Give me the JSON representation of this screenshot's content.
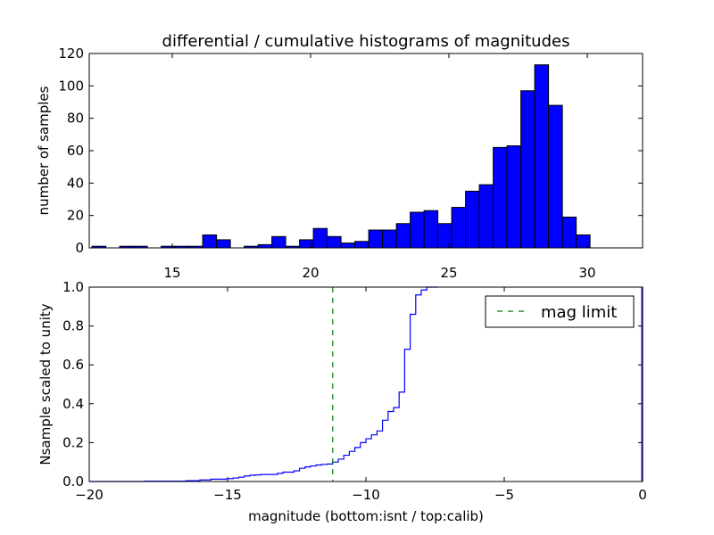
{
  "chart_data": [
    {
      "type": "bar",
      "title": "differential / cumulative histograms of magnitudes",
      "xlabel": "",
      "ylabel": "number of samples",
      "xlim": [
        12.0,
        32.0
      ],
      "ylim": [
        0,
        120
      ],
      "xticks": [
        15,
        20,
        25,
        30
      ],
      "yticks": [
        0,
        20,
        40,
        60,
        80,
        100,
        120
      ],
      "xtick_position": "top",
      "grid": false,
      "bar_color": "#0000ff",
      "bar_edge_color": "#000000",
      "bins": [
        {
          "x0": 12.1,
          "x1": 12.6,
          "count": 1
        },
        {
          "x0": 13.1,
          "x1": 13.6,
          "count": 1
        },
        {
          "x0": 13.6,
          "x1": 14.1,
          "count": 1
        },
        {
          "x0": 14.6,
          "x1": 15.1,
          "count": 1
        },
        {
          "x0": 15.1,
          "x1": 15.6,
          "count": 1
        },
        {
          "x0": 15.6,
          "x1": 16.1,
          "count": 1
        },
        {
          "x0": 16.1,
          "x1": 16.6,
          "count": 8
        },
        {
          "x0": 16.6,
          "x1": 17.1,
          "count": 5
        },
        {
          "x0": 17.6,
          "x1": 18.1,
          "count": 1
        },
        {
          "x0": 18.1,
          "x1": 18.6,
          "count": 2
        },
        {
          "x0": 18.6,
          "x1": 19.1,
          "count": 7
        },
        {
          "x0": 19.1,
          "x1": 19.6,
          "count": 1
        },
        {
          "x0": 19.6,
          "x1": 20.1,
          "count": 5
        },
        {
          "x0": 20.1,
          "x1": 20.6,
          "count": 12
        },
        {
          "x0": 20.6,
          "x1": 21.1,
          "count": 7
        },
        {
          "x0": 21.1,
          "x1": 21.6,
          "count": 3
        },
        {
          "x0": 21.6,
          "x1": 22.1,
          "count": 4
        },
        {
          "x0": 22.1,
          "x1": 22.6,
          "count": 11
        },
        {
          "x0": 22.6,
          "x1": 23.1,
          "count": 11
        },
        {
          "x0": 23.1,
          "x1": 23.6,
          "count": 15
        },
        {
          "x0": 23.6,
          "x1": 24.1,
          "count": 22
        },
        {
          "x0": 24.1,
          "x1": 24.6,
          "count": 23
        },
        {
          "x0": 24.6,
          "x1": 25.1,
          "count": 15
        },
        {
          "x0": 25.1,
          "x1": 25.6,
          "count": 25
        },
        {
          "x0": 25.6,
          "x1": 26.1,
          "count": 35
        },
        {
          "x0": 26.1,
          "x1": 26.6,
          "count": 39
        },
        {
          "x0": 26.6,
          "x1": 27.1,
          "count": 62
        },
        {
          "x0": 27.1,
          "x1": 27.6,
          "count": 63
        },
        {
          "x0": 27.6,
          "x1": 28.1,
          "count": 97
        },
        {
          "x0": 28.1,
          "x1": 28.6,
          "count": 113
        },
        {
          "x0": 28.6,
          "x1": 29.1,
          "count": 88
        },
        {
          "x0": 29.1,
          "x1": 29.6,
          "count": 19
        },
        {
          "x0": 29.6,
          "x1": 30.1,
          "count": 8
        }
      ]
    },
    {
      "type": "line",
      "xlabel": "magnitude (bottom:isnt / top:calib)",
      "ylabel": "Nsample scaled to unity",
      "xlim": [
        -20,
        0
      ],
      "ylim": [
        0.0,
        1.0
      ],
      "xticks": [
        -20,
        -15,
        -10,
        -5,
        0
      ],
      "xtick_labels": [
        "−20",
        "−15",
        "−10",
        "−5",
        "0"
      ],
      "yticks": [
        "0.0",
        "0.2",
        "0.4",
        "0.6",
        "0.8",
        "1.0"
      ],
      "grid": false,
      "legend_position": "top-right",
      "series": [
        {
          "style": "step",
          "color": "#0000ff",
          "x": [
            -20.0,
            -18.0,
            -16.5,
            -16.0,
            -15.6,
            -15.0,
            -14.8,
            -14.6,
            -14.4,
            -14.2,
            -14.0,
            -13.8,
            -13.2,
            -13.0,
            -12.6,
            -12.4,
            -12.2,
            -12.0,
            -11.8,
            -11.6,
            -11.4,
            -11.2,
            -11.0,
            -10.8,
            -10.6,
            -10.4,
            -10.2,
            -10.0,
            -9.8,
            -9.6,
            -9.4,
            -9.2,
            -9.0,
            -8.8,
            -8.6,
            -8.4,
            -8.2,
            -8.0,
            -7.8,
            -7.6
          ],
          "y": [
            0.0,
            0.002,
            0.004,
            0.008,
            0.012,
            0.015,
            0.018,
            0.022,
            0.028,
            0.032,
            0.034,
            0.036,
            0.042,
            0.048,
            0.055,
            0.068,
            0.075,
            0.08,
            0.085,
            0.088,
            0.09,
            0.1,
            0.115,
            0.135,
            0.155,
            0.175,
            0.2,
            0.22,
            0.24,
            0.26,
            0.315,
            0.36,
            0.38,
            0.46,
            0.68,
            0.86,
            0.96,
            0.985,
            1.0,
            1.0
          ]
        },
        {
          "name": "mag limit",
          "style": "dashed-vline",
          "color": "#008000",
          "x": -11.2
        }
      ]
    }
  ]
}
